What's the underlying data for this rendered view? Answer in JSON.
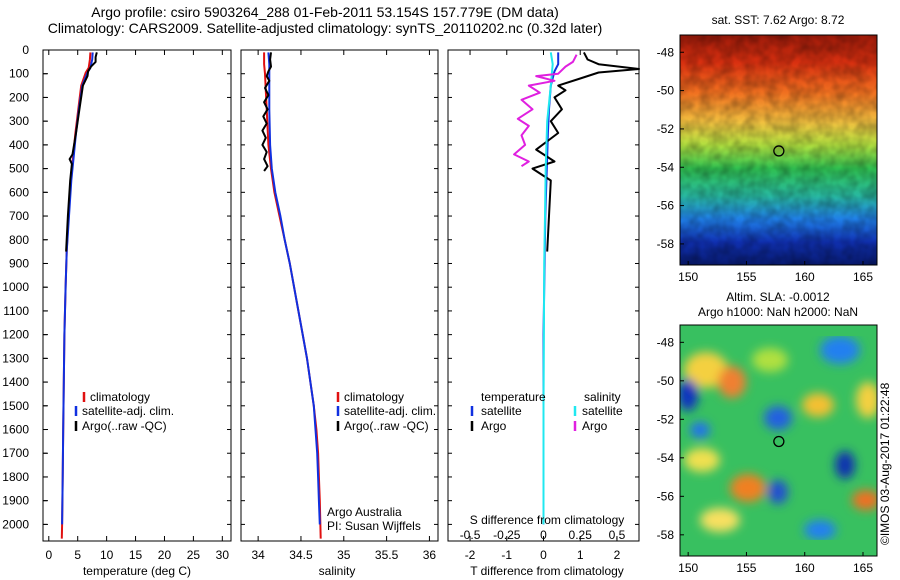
{
  "header": {
    "title_line1": "Argo profile: csiro 5903264_288 01-Feb-2011 53.154S 157.779E (DM data)",
    "title_line2": "Climatology: CARS2009. Satellite-adjusted climatology: synTS_20110202.nc (0.32d later)"
  },
  "colors": {
    "climatology": "#e01010",
    "satellite": "#1030e0",
    "argo": "#000000",
    "salinity_satellite": "#20e8f0",
    "salinity_argo": "#e020e0"
  },
  "chart_data": [
    {
      "type": "line",
      "name": "temperature-profile",
      "xlabel": "temperature (deg C)",
      "xlim": [
        -1,
        31.5
      ],
      "xticks": [
        0,
        5,
        10,
        15,
        20,
        25,
        30
      ],
      "ylim": [
        0,
        2070
      ],
      "yticks": [
        0,
        100,
        200,
        300,
        400,
        500,
        600,
        700,
        800,
        900,
        1000,
        1100,
        1200,
        1300,
        1400,
        1500,
        1600,
        1700,
        1800,
        1900,
        2000
      ],
      "y_reversed": true,
      "legend": [
        "climatology",
        "satellite-adj. clim.",
        "Argo(..raw -QC)"
      ],
      "series": [
        {
          "name": "climatology",
          "color": "#e01010",
          "points": [
            [
              7.2,
              10
            ],
            [
              7.1,
              40
            ],
            [
              6.9,
              75
            ],
            [
              6.4,
              95
            ],
            [
              5.6,
              150
            ],
            [
              5.1,
              250
            ],
            [
              4.6,
              350
            ],
            [
              4.2,
              450
            ],
            [
              3.8,
              550
            ],
            [
              3.4,
              700
            ],
            [
              3.1,
              850
            ],
            [
              2.9,
              1000
            ],
            [
              2.7,
              1200
            ],
            [
              2.6,
              1400
            ],
            [
              2.5,
              1600
            ],
            [
              2.4,
              1800
            ],
            [
              2.3,
              2000
            ],
            [
              2.25,
              2060
            ]
          ]
        },
        {
          "name": "satellite-adj. clim.",
          "color": "#1030e0",
          "points": [
            [
              7.6,
              10
            ],
            [
              7.5,
              40
            ],
            [
              7.2,
              75
            ],
            [
              6.7,
              95
            ],
            [
              5.8,
              150
            ],
            [
              5.2,
              250
            ],
            [
              4.7,
              350
            ],
            [
              4.3,
              450
            ],
            [
              3.9,
              550
            ],
            [
              3.5,
              700
            ],
            [
              3.1,
              850
            ],
            [
              2.9,
              1000
            ],
            [
              2.7,
              1200
            ],
            [
              2.6,
              1400
            ],
            [
              2.5,
              1600
            ],
            [
              2.4,
              1800
            ],
            [
              2.3,
              2000
            ]
          ]
        },
        {
          "name": "Argo(..raw -QC)",
          "color": "#000000",
          "points": [
            [
              8.3,
              10
            ],
            [
              8.1,
              30
            ],
            [
              8.1,
              50
            ],
            [
              7.3,
              70
            ],
            [
              6.8,
              90
            ],
            [
              6.7,
              110
            ],
            [
              5.9,
              150
            ],
            [
              5.3,
              250
            ],
            [
              4.7,
              350
            ],
            [
              4.1,
              440
            ],
            [
              3.6,
              460
            ],
            [
              4.0,
              480
            ],
            [
              3.7,
              550
            ],
            [
              3.3,
              700
            ],
            [
              3.0,
              850
            ]
          ]
        }
      ]
    },
    {
      "type": "line",
      "name": "salinity-profile",
      "xlabel": "salinity",
      "xlim": [
        33.8,
        36.1
      ],
      "xticks": [
        34,
        34.5,
        35,
        35.5,
        36
      ],
      "ylim": [
        0,
        2070
      ],
      "y_reversed": true,
      "legend": [
        "climatology",
        "satellite-adj. clim.",
        "Argo(..raw -QC)"
      ],
      "annotations": [
        "Argo Australia",
        "PI: Susan Wijffels"
      ],
      "series": [
        {
          "name": "climatology",
          "color": "#e01010",
          "points": [
            [
              34.07,
              10
            ],
            [
              34.07,
              60
            ],
            [
              34.08,
              100
            ],
            [
              34.1,
              250
            ],
            [
              34.12,
              400
            ],
            [
              34.15,
              500
            ],
            [
              34.19,
              600
            ],
            [
              34.25,
              700
            ],
            [
              34.31,
              800
            ],
            [
              34.37,
              900
            ],
            [
              34.42,
              1000
            ],
            [
              34.47,
              1100
            ],
            [
              34.52,
              1200
            ],
            [
              34.57,
              1300
            ],
            [
              34.61,
              1400
            ],
            [
              34.65,
              1500
            ],
            [
              34.68,
              1600
            ],
            [
              34.7,
              1700
            ],
            [
              34.71,
              1800
            ],
            [
              34.72,
              1900
            ],
            [
              34.73,
              2060
            ]
          ]
        },
        {
          "name": "satellite-adj. clim.",
          "color": "#1030e0",
          "points": [
            [
              34.12,
              10
            ],
            [
              34.13,
              60
            ],
            [
              34.13,
              100
            ],
            [
              34.13,
              250
            ],
            [
              34.14,
              400
            ],
            [
              34.16,
              500
            ],
            [
              34.2,
              600
            ],
            [
              34.26,
              700
            ],
            [
              34.31,
              800
            ],
            [
              34.37,
              900
            ],
            [
              34.42,
              1000
            ],
            [
              34.47,
              1100
            ],
            [
              34.52,
              1200
            ],
            [
              34.57,
              1300
            ],
            [
              34.61,
              1400
            ],
            [
              34.65,
              1500
            ],
            [
              34.67,
              1600
            ],
            [
              34.69,
              1700
            ],
            [
              34.7,
              1800
            ],
            [
              34.71,
              1900
            ],
            [
              34.72,
              2000
            ]
          ]
        },
        {
          "name": "Argo(..raw -QC)",
          "color": "#000000",
          "points": [
            [
              34.15,
              10
            ],
            [
              34.14,
              40
            ],
            [
              34.15,
              70
            ],
            [
              34.12,
              90
            ],
            [
              34.1,
              110
            ],
            [
              34.13,
              130
            ],
            [
              34.08,
              160
            ],
            [
              34.12,
              190
            ],
            [
              34.07,
              220
            ],
            [
              34.11,
              250
            ],
            [
              34.06,
              280
            ],
            [
              34.1,
              310
            ],
            [
              34.05,
              340
            ],
            [
              34.09,
              370
            ],
            [
              34.05,
              400
            ],
            [
              34.1,
              430
            ],
            [
              34.07,
              460
            ],
            [
              34.11,
              490
            ],
            [
              34.07,
              510
            ]
          ]
        }
      ]
    },
    {
      "type": "line",
      "name": "difference-profile",
      "xlabel": "T difference from climatology",
      "xlabel_top": "S difference from climatology",
      "xlim": [
        -2.6,
        2.6
      ],
      "xticks": [
        -2,
        -1,
        0,
        1,
        2
      ],
      "xticks_top_labels": [
        "-0.5",
        "-0.25",
        "0",
        "0.25",
        "0.5"
      ],
      "ylim": [
        0,
        2070
      ],
      "y_reversed": true,
      "legend_temperature_title": "temperature",
      "legend_salinity_title": "salinity",
      "legend_temperature": [
        "satellite",
        "Argo"
      ],
      "legend_salinity": [
        "satellite",
        "Argo"
      ],
      "series": [
        {
          "name": "temperature satellite",
          "color": "#1030e0",
          "points": [
            [
              0.4,
              10
            ],
            [
              0.4,
              60
            ],
            [
              0.3,
              90
            ],
            [
              0.2,
              150
            ],
            [
              0.15,
              250
            ],
            [
              0.12,
              350
            ],
            [
              0.1,
              450
            ],
            [
              0.08,
              550
            ],
            [
              0.05,
              700
            ],
            [
              0.03,
              900
            ],
            [
              0.0,
              1200
            ],
            [
              0.0,
              1500
            ],
            [
              0.0,
              1800
            ],
            [
              0.0,
              2000
            ]
          ]
        },
        {
          "name": "temperature Argo",
          "color": "#000000",
          "points": [
            [
              1.1,
              10
            ],
            [
              1.2,
              40
            ],
            [
              1.5,
              60
            ],
            [
              2.6,
              80
            ],
            [
              1.5,
              95
            ],
            [
              1.0,
              120
            ],
            [
              0.4,
              150
            ],
            [
              0.6,
              170
            ],
            [
              0.3,
              200
            ],
            [
              0.5,
              250
            ],
            [
              0.2,
              300
            ],
            [
              0.4,
              350
            ],
            [
              -0.2,
              420
            ],
            [
              0.3,
              470
            ],
            [
              -0.3,
              500
            ],
            [
              0.2,
              550
            ],
            [
              0.15,
              700
            ],
            [
              0.1,
              850
            ]
          ]
        },
        {
          "name": "salinity satellite",
          "color": "#20e8f0",
          "points": [
            [
              0.2,
              10
            ],
            [
              0.25,
              60
            ],
            [
              0.2,
              150
            ],
            [
              0.1,
              300
            ],
            [
              0.06,
              500
            ],
            [
              0.04,
              700
            ],
            [
              0.02,
              900
            ],
            [
              0.01,
              1200
            ],
            [
              0.0,
              1500
            ],
            [
              0.0,
              1800
            ],
            [
              0.0,
              2000
            ]
          ]
        },
        {
          "name": "salinity Argo",
          "color": "#e020e0",
          "points": [
            [
              0.9,
              20
            ],
            [
              0.8,
              50
            ],
            [
              0.6,
              70
            ],
            [
              0.4,
              100
            ],
            [
              -0.2,
              110
            ],
            [
              0.3,
              130
            ],
            [
              -0.4,
              150
            ],
            [
              -0.1,
              180
            ],
            [
              -0.6,
              210
            ],
            [
              -0.3,
              250
            ],
            [
              -0.7,
              290
            ],
            [
              -0.4,
              320
            ],
            [
              -0.6,
              360
            ],
            [
              -0.5,
              400
            ],
            [
              -0.8,
              440
            ],
            [
              -0.4,
              470
            ],
            [
              -0.6,
              490
            ]
          ]
        }
      ]
    },
    {
      "type": "heatmap",
      "name": "sst-map",
      "title": "sat. SST: 7.62 Argo: 8.72",
      "xlim": [
        149.3,
        166.2
      ],
      "ylim": [
        -59.1,
        -47.1
      ],
      "xticks": [
        150,
        155,
        160,
        165
      ],
      "yticks": [
        -48,
        -50,
        -52,
        -54,
        -56,
        -58
      ],
      "argo_position": [
        157.78,
        -53.15
      ]
    },
    {
      "type": "heatmap",
      "name": "sla-map",
      "title": "Altim. SLA: -0.0012",
      "subtitle": "Argo h1000: NaN h2000: NaN",
      "xlim": [
        149.3,
        166.2
      ],
      "ylim": [
        -59.1,
        -47.1
      ],
      "xticks": [
        150,
        155,
        160,
        165
      ],
      "yticks": [
        -48,
        -50,
        -52,
        -54,
        -56,
        -58
      ],
      "argo_position": [
        157.78,
        -53.15
      ]
    }
  ],
  "credit": "©IMOS 03-Aug-2017 01:22:48"
}
